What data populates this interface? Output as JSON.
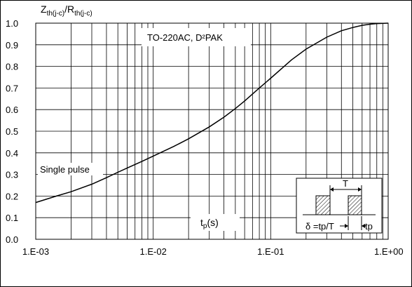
{
  "chart_data": {
    "type": "line",
    "title": "",
    "ylabel_main_1": "Z",
    "ylabel_sub_1": "th(j-c)",
    "ylabel_sep": "/",
    "ylabel_main_2": "R",
    "ylabel_sub_2": "th(j-c)",
    "xlabel_main": "t",
    "xlabel_sub": "p",
    "xlabel_unit": "(s)",
    "x_scale": "log",
    "xlim": [
      0.001,
      1.0
    ],
    "ylim": [
      0.0,
      1.0
    ],
    "x_tick_labels": [
      "1.E-03",
      "1.E-02",
      "1.E-01",
      "1.E+00"
    ],
    "y_tick_labels": [
      "0.0",
      "0.1",
      "0.2",
      "0.3",
      "0.4",
      "0.5",
      "0.6",
      "0.7",
      "0.8",
      "0.9",
      "1.0"
    ],
    "grid": true,
    "series": [
      {
        "name": "Single pulse",
        "x": [
          0.001,
          0.0015,
          0.002,
          0.003,
          0.004,
          0.005,
          0.006,
          0.008,
          0.01,
          0.015,
          0.02,
          0.03,
          0.04,
          0.05,
          0.06,
          0.08,
          0.1,
          0.15,
          0.2,
          0.3,
          0.4,
          0.5,
          0.6,
          0.7,
          0.8,
          1.0
        ],
        "y": [
          0.17,
          0.2,
          0.22,
          0.255,
          0.285,
          0.31,
          0.33,
          0.36,
          0.385,
          0.43,
          0.465,
          0.52,
          0.565,
          0.605,
          0.64,
          0.7,
          0.745,
          0.83,
          0.88,
          0.935,
          0.965,
          0.98,
          0.99,
          0.995,
          0.998,
          1.0
        ]
      }
    ],
    "annotations": {
      "package": "TO-220AC, D²PAK",
      "single_pulse": "Single pulse"
    },
    "inset": {
      "period_label": "T",
      "duty_label": "δ =tp/T",
      "pulse_label": "tp"
    }
  }
}
